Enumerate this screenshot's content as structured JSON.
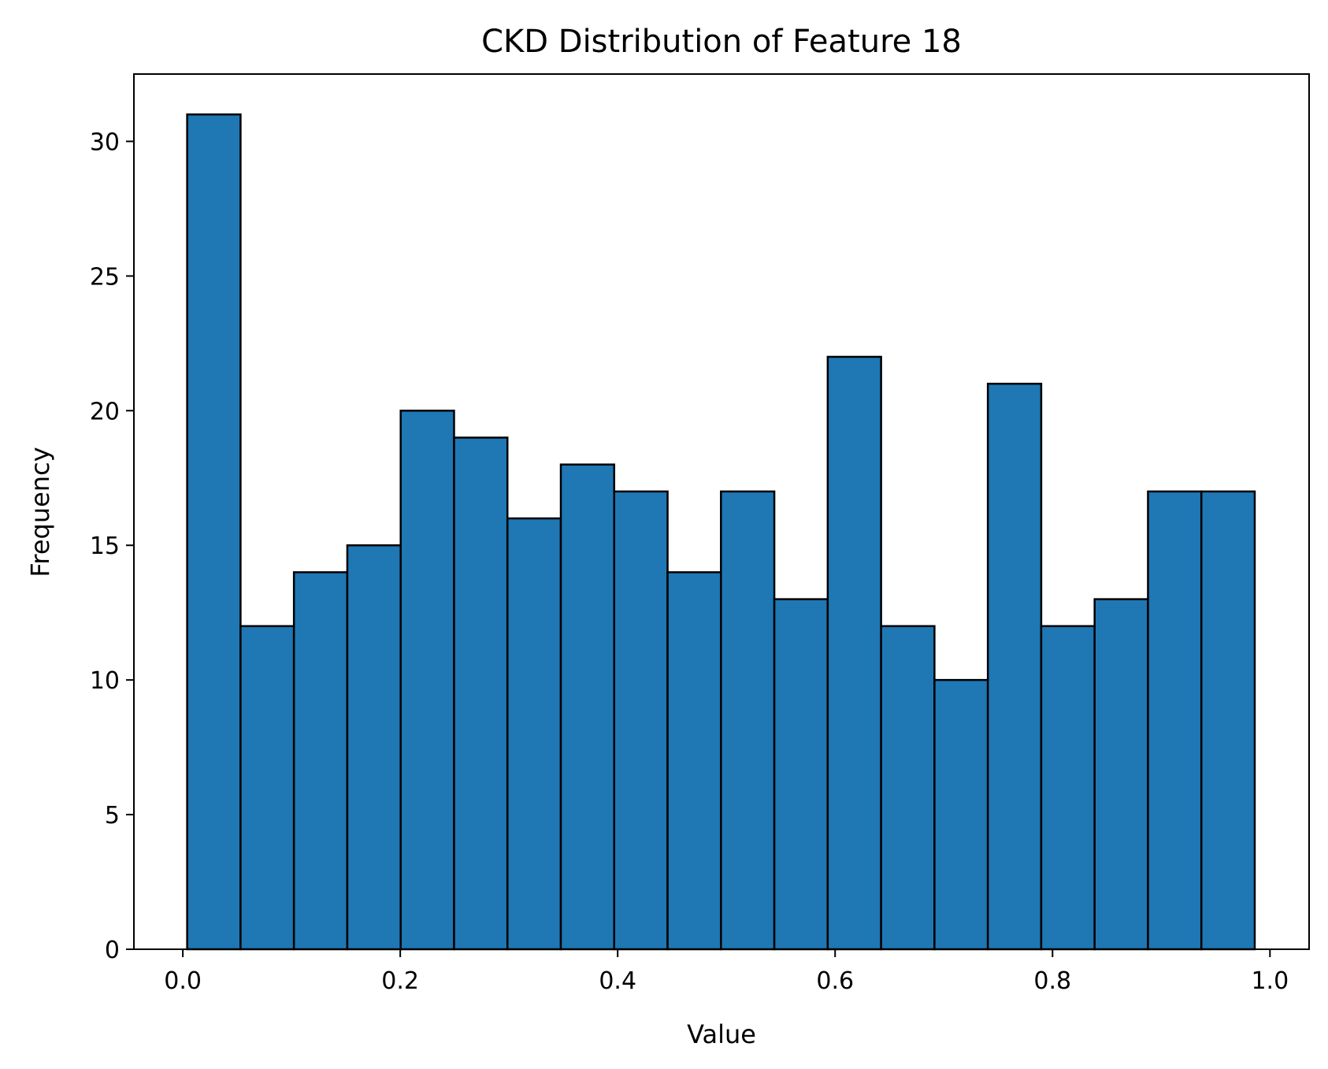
{
  "chart_data": {
    "type": "bar",
    "title": "CKD Distribution of Feature 18",
    "xlabel": "Value",
    "ylabel": "Frequency",
    "bar_color": "#1f77b4",
    "edge_color": "#000000",
    "bin_start": 0.004,
    "bin_width": 0.0491,
    "values": [
      31,
      12,
      14,
      15,
      20,
      19,
      16,
      18,
      17,
      14,
      17,
      13,
      22,
      12,
      10,
      21,
      12,
      13,
      17,
      17
    ],
    "xlim": [
      -0.045,
      1.036
    ],
    "ylim": [
      0,
      32.5
    ],
    "xticks": [
      0.0,
      0.2,
      0.4,
      0.6,
      0.8,
      1.0
    ],
    "xtick_labels": [
      "0.0",
      "0.2",
      "0.4",
      "0.6",
      "0.8",
      "1.0"
    ],
    "yticks": [
      0,
      5,
      10,
      15,
      20,
      25,
      30
    ],
    "ytick_labels": [
      "0",
      "5",
      "10",
      "15",
      "20",
      "25",
      "30"
    ],
    "grid": false,
    "legend": "none"
  }
}
